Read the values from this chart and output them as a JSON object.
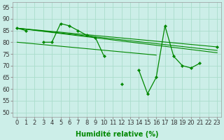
{
  "background_color": "#cceee8",
  "grid_color": "#aaddcc",
  "line_color": "#008800",
  "marker_color": "#008800",
  "xlabel": "Humidité relative (%)",
  "xlim": [
    -0.5,
    23.5
  ],
  "ylim": [
    48,
    97
  ],
  "xlabel_fontsize": 7,
  "tick_fontsize": 6,
  "series_main": [
    86,
    85,
    null,
    80,
    80,
    88,
    87,
    85,
    83,
    82,
    74,
    null,
    62,
    null,
    68,
    58,
    65,
    87,
    74,
    70,
    69,
    71,
    null,
    78
  ],
  "trend_lines": [
    [
      [
        0,
        23
      ],
      [
        86,
        78
      ]
    ],
    [
      [
        0,
        23
      ],
      [
        86,
        76
      ]
    ],
    [
      [
        0,
        10
      ],
      [
        86,
        79
      ],
      [
        10,
        23
      ],
      [
        79,
        77
      ]
    ],
    [
      [
        0,
        23
      ],
      [
        80,
        75
      ]
    ]
  ],
  "straight_lines": [
    {
      "x": [
        0,
        23
      ],
      "y": [
        86.0,
        78.0
      ]
    },
    {
      "x": [
        0,
        23
      ],
      "y": [
        86.0,
        76.5
      ]
    },
    {
      "x": [
        0,
        23
      ],
      "y": [
        86.0,
        75.5
      ]
    },
    {
      "x": [
        0,
        16
      ],
      "y": [
        80.0,
        74.5
      ]
    }
  ]
}
